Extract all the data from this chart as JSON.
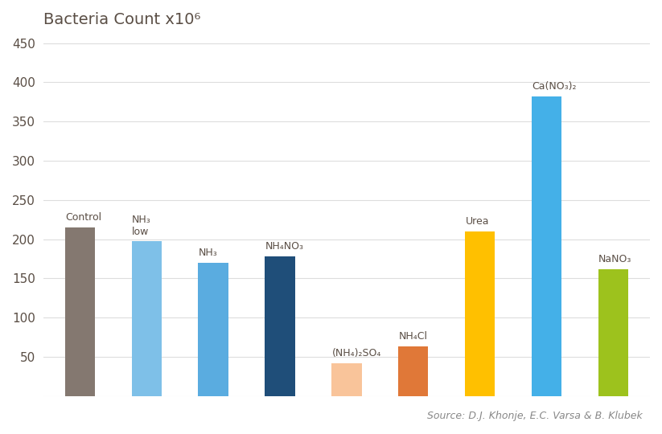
{
  "title": "Bacteria Count x10⁶",
  "categories": [
    "Control",
    "NH₃\nlow",
    "NH₃",
    "NH₄NO₃",
    "(NH₄)₂SO₄",
    "NH₄Cl",
    "Urea",
    "Ca(NO₃)₂",
    "NaNO₃"
  ],
  "values": [
    215,
    197,
    170,
    178,
    42,
    63,
    210,
    382,
    162
  ],
  "bar_colors": [
    "#847870",
    "#7ec0e8",
    "#5aace0",
    "#1f4e79",
    "#f9c49a",
    "#e07838",
    "#ffc000",
    "#44b0e8",
    "#9dc21d"
  ],
  "ylim": [
    0,
    460
  ],
  "yticks": [
    0,
    50,
    100,
    150,
    200,
    250,
    300,
    350,
    400,
    450
  ],
  "source_text": "Source: D.J. Khonje, E.C. Varsa & B. Klubek",
  "bg_color": "#ffffff",
  "grid_color": "#dddddd",
  "title_color": "#5a4e45",
  "label_color": "#5a4e45",
  "tick_color": "#5a4e45",
  "source_color": "#888888",
  "bar_width": 0.45
}
